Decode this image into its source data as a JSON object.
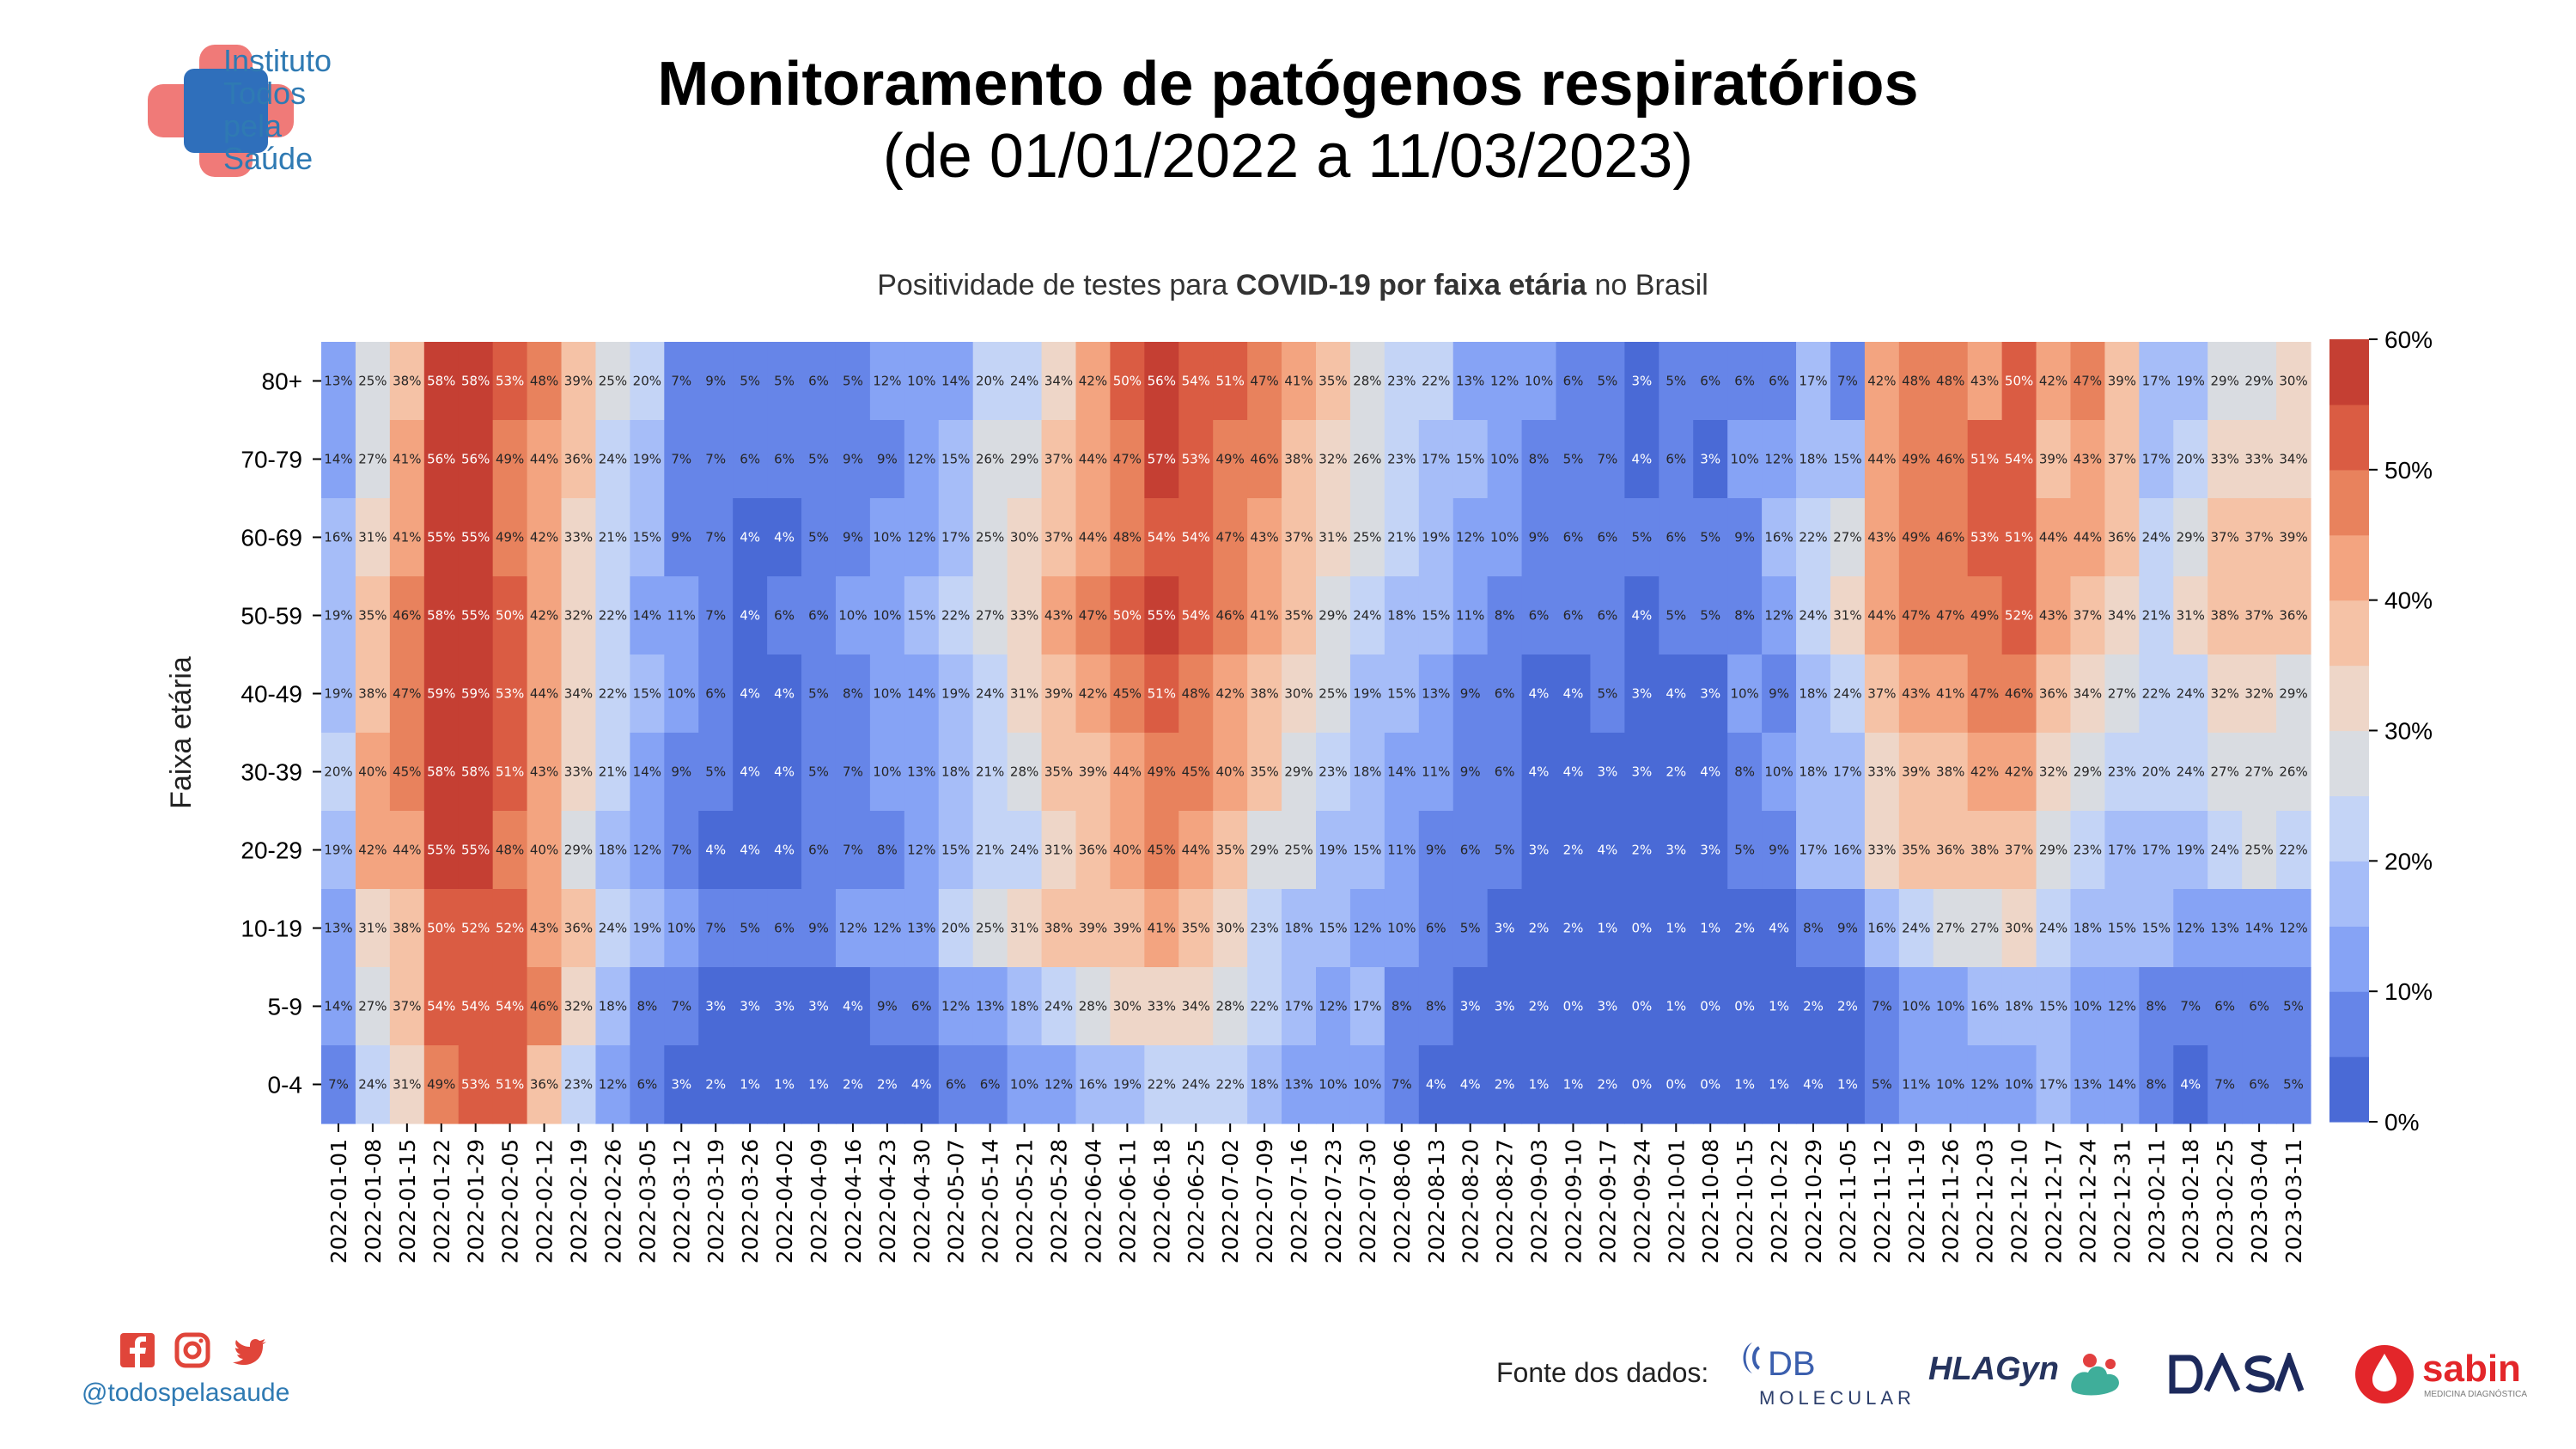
{
  "org": {
    "name_lines": [
      "Instituto",
      "Todos",
      "pela",
      "Saúde"
    ],
    "brand_color": "#2f7ab3",
    "handle": "@todospelasaude"
  },
  "header": {
    "title": "Monitoramento de patógenos respiratórios",
    "subtitle": "(de 01/01/2022 a 11/03/2023)"
  },
  "chart_title": {
    "prefix": "Positividade de testes para ",
    "bold": "COVID-19 por faixa etária",
    "suffix": " no Brasil"
  },
  "footer": {
    "sources_label": "Fonte dos dados:",
    "social_icons": [
      "facebook-icon",
      "instagram-icon",
      "twitter-icon"
    ],
    "source_logos": [
      {
        "name": "DB",
        "sub": "MOLECULAR"
      },
      {
        "name": "HLAGyn"
      },
      {
        "name": "DASA"
      },
      {
        "name": "sabin",
        "sub": "MEDICINA DIAGNÓSTICA"
      }
    ]
  },
  "chart_data": {
    "type": "heatmap",
    "ylabel": "Faixa etária",
    "y": [
      "80+",
      "70-79",
      "60-69",
      "50-59",
      "40-49",
      "30-39",
      "20-29",
      "10-19",
      "5-9",
      "0-4"
    ],
    "x": [
      "2022-01-01",
      "2022-01-08",
      "2022-01-15",
      "2022-01-22",
      "2022-01-29",
      "2022-02-05",
      "2022-02-12",
      "2022-02-19",
      "2022-02-26",
      "2022-03-05",
      "2022-03-12",
      "2022-03-19",
      "2022-03-26",
      "2022-04-02",
      "2022-04-09",
      "2022-04-16",
      "2022-04-23",
      "2022-04-30",
      "2022-05-07",
      "2022-05-14",
      "2022-05-21",
      "2022-05-28",
      "2022-06-04",
      "2022-06-11",
      "2022-06-18",
      "2022-06-25",
      "2022-07-02",
      "2022-07-09",
      "2022-07-16",
      "2022-07-23",
      "2022-07-30",
      "2022-08-06",
      "2022-08-13",
      "2022-08-20",
      "2022-08-27",
      "2022-09-03",
      "2022-09-10",
      "2022-09-17",
      "2022-09-24",
      "2022-10-01",
      "2022-10-08",
      "2022-10-15",
      "2022-10-22",
      "2022-10-29",
      "2022-11-05",
      "2022-11-12",
      "2022-11-19",
      "2022-11-26",
      "2022-12-03",
      "2022-12-10",
      "2022-12-17",
      "2022-12-24",
      "2022-12-31",
      "2023-02-11",
      "2023-02-18",
      "2023-02-25",
      "2023-03-04",
      "2023-03-11"
    ],
    "values": [
      [
        13,
        25,
        38,
        58,
        58,
        53,
        48,
        39,
        25,
        20,
        7,
        9,
        5,
        5,
        6,
        5,
        12,
        10,
        14,
        20,
        24,
        34,
        42,
        50,
        56,
        54,
        51,
        47,
        41,
        35,
        28,
        23,
        22,
        13,
        12,
        10,
        6,
        5,
        3,
        5,
        6,
        6,
        6,
        17,
        7,
        42,
        48,
        48,
        43,
        50,
        42,
        47,
        39,
        17,
        19,
        29,
        29,
        30
      ],
      [
        14,
        27,
        41,
        56,
        56,
        49,
        44,
        36,
        24,
        19,
        7,
        7,
        6,
        6,
        5,
        9,
        9,
        12,
        15,
        26,
        29,
        37,
        44,
        47,
        57,
        53,
        49,
        46,
        38,
        32,
        26,
        23,
        17,
        15,
        10,
        8,
        5,
        7,
        4,
        6,
        3,
        10,
        12,
        18,
        15,
        44,
        49,
        46,
        51,
        54,
        39,
        43,
        37,
        17,
        20,
        33,
        33,
        34
      ],
      [
        16,
        31,
        41,
        55,
        55,
        49,
        42,
        33,
        21,
        15,
        9,
        7,
        4,
        4,
        5,
        9,
        10,
        12,
        17,
        25,
        30,
        37,
        44,
        48,
        54,
        54,
        47,
        43,
        37,
        31,
        25,
        21,
        19,
        12,
        10,
        9,
        6,
        6,
        5,
        6,
        5,
        9,
        16,
        22,
        27,
        43,
        49,
        46,
        53,
        51,
        44,
        44,
        36,
        24,
        29,
        37,
        37,
        39
      ],
      [
        19,
        35,
        46,
        58,
        55,
        50,
        42,
        32,
        22,
        14,
        11,
        7,
        4,
        6,
        6,
        10,
        10,
        15,
        22,
        27,
        33,
        43,
        47,
        50,
        55,
        54,
        46,
        41,
        35,
        29,
        24,
        18,
        15,
        11,
        8,
        6,
        6,
        6,
        4,
        5,
        5,
        8,
        12,
        24,
        31,
        44,
        47,
        47,
        49,
        52,
        43,
        37,
        34,
        21,
        31,
        38,
        37,
        36
      ],
      [
        19,
        38,
        47,
        59,
        59,
        53,
        44,
        34,
        22,
        15,
        10,
        6,
        4,
        4,
        5,
        8,
        10,
        14,
        19,
        24,
        31,
        39,
        42,
        45,
        51,
        48,
        42,
        38,
        30,
        25,
        19,
        15,
        13,
        9,
        6,
        4,
        4,
        5,
        3,
        4,
        3,
        10,
        9,
        18,
        24,
        37,
        43,
        41,
        47,
        46,
        36,
        34,
        27,
        22,
        24,
        32,
        32,
        29
      ],
      [
        20,
        40,
        45,
        58,
        58,
        51,
        43,
        33,
        21,
        14,
        9,
        5,
        4,
        4,
        5,
        7,
        10,
        13,
        18,
        21,
        28,
        35,
        39,
        44,
        49,
        45,
        40,
        35,
        29,
        23,
        18,
        14,
        11,
        9,
        6,
        4,
        4,
        3,
        3,
        2,
        4,
        8,
        10,
        18,
        17,
        33,
        39,
        38,
        42,
        42,
        32,
        29,
        23,
        20,
        24,
        27,
        27,
        26
      ],
      [
        19,
        42,
        44,
        55,
        55,
        48,
        40,
        29,
        18,
        12,
        7,
        4,
        4,
        4,
        6,
        7,
        8,
        12,
        15,
        21,
        24,
        31,
        36,
        40,
        45,
        44,
        35,
        29,
        25,
        19,
        15,
        11,
        9,
        6,
        5,
        3,
        2,
        4,
        2,
        3,
        3,
        5,
        9,
        17,
        16,
        33,
        35,
        36,
        38,
        37,
        29,
        23,
        17,
        17,
        19,
        24,
        25,
        22
      ],
      [
        13,
        31,
        38,
        50,
        52,
        52,
        43,
        36,
        24,
        19,
        10,
        7,
        5,
        6,
        9,
        12,
        12,
        13,
        20,
        25,
        31,
        38,
        39,
        39,
        41,
        35,
        30,
        23,
        18,
        15,
        12,
        10,
        6,
        5,
        3,
        2,
        2,
        1,
        0,
        1,
        1,
        2,
        4,
        8,
        9,
        16,
        24,
        27,
        27,
        30,
        24,
        18,
        15,
        15,
        12,
        13,
        14,
        12
      ],
      [
        14,
        27,
        37,
        54,
        54,
        54,
        46,
        32,
        18,
        8,
        7,
        3,
        3,
        3,
        3,
        4,
        9,
        6,
        12,
        13,
        18,
        24,
        28,
        30,
        33,
        34,
        28,
        22,
        17,
        12,
        17,
        8,
        8,
        3,
        3,
        2,
        0,
        3,
        0,
        1,
        0,
        0,
        1,
        2,
        2,
        7,
        10,
        10,
        16,
        18,
        15,
        10,
        12,
        8,
        7,
        6,
        6,
        5
      ],
      [
        7,
        24,
        31,
        49,
        53,
        51,
        36,
        23,
        12,
        6,
        3,
        2,
        1,
        1,
        1,
        2,
        2,
        4,
        6,
        6,
        10,
        12,
        16,
        19,
        22,
        24,
        22,
        18,
        13,
        10,
        10,
        7,
        4,
        4,
        2,
        1,
        1,
        2,
        0,
        0,
        0,
        1,
        1,
        4,
        1,
        5,
        11,
        10,
        12,
        10,
        17,
        13,
        14,
        8,
        4,
        7,
        6,
        5
      ]
    ],
    "value_suffix": "%",
    "colorbar": {
      "min": 0,
      "max": 60,
      "ticks": [
        "0%",
        "10%",
        "20%",
        "30%",
        "40%",
        "50%",
        "60%"
      ],
      "bins": 12
    },
    "palette": [
      "#4a6ad6",
      "#6685e8",
      "#86a3f5",
      "#a6bdf8",
      "#c4d4f6",
      "#d9dce1",
      "#eed6c8",
      "#f5c2a6",
      "#f3a480",
      "#e8825d",
      "#da5c43",
      "#c53f33"
    ]
  }
}
